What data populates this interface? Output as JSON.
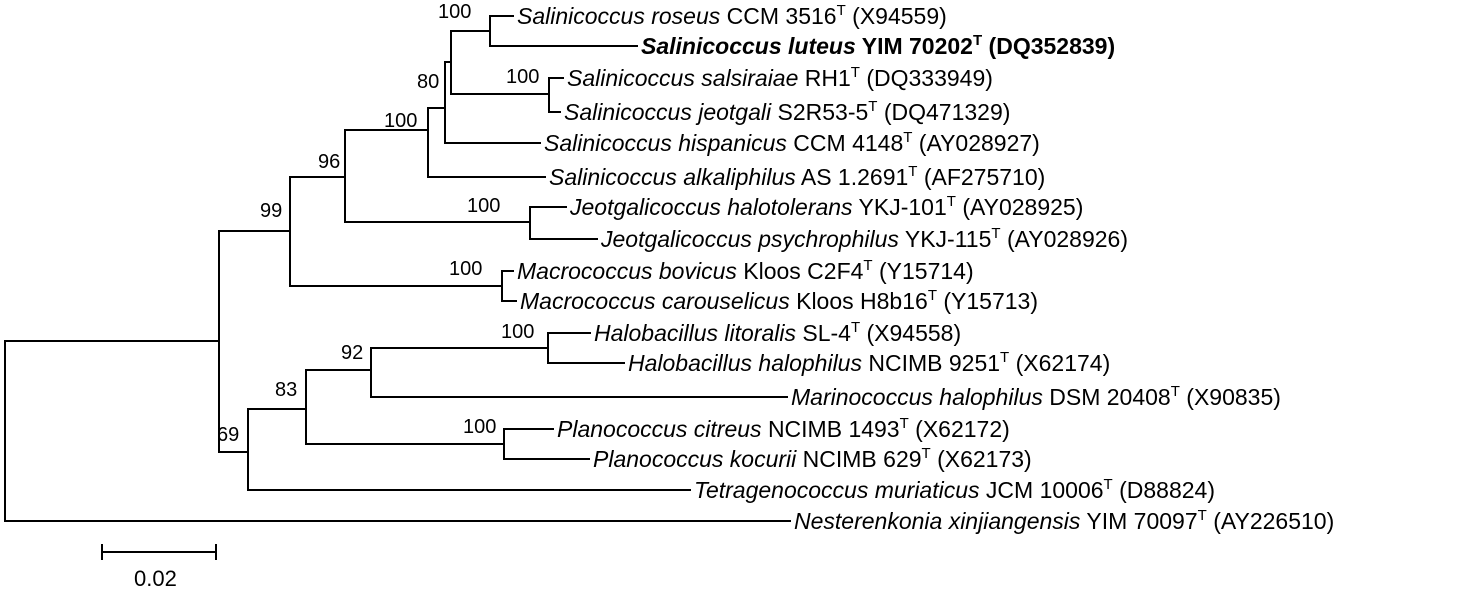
{
  "tree": {
    "taxa": [
      {
        "id": "roseus",
        "species": "Salinicoccus roseus",
        "strain": "CCM 3516",
        "superscript": "T",
        "accession": "(X94559)"
      },
      {
        "id": "luteus",
        "species": "Salinicoccus luteus",
        "strain": "YIM 70202",
        "superscript": "T",
        "accession": "(DQ352839)",
        "emphasis": "bold"
      },
      {
        "id": "salsiraiae",
        "species": "Salinicoccus salsiraiae",
        "strain": "RH1",
        "superscript": "T",
        "accession": "(DQ333949)"
      },
      {
        "id": "jeotgali",
        "species": "Salinicoccus jeotgali",
        "strain": "S2R53-5",
        "superscript": "T",
        "accession": "(DQ471329)"
      },
      {
        "id": "hispanicus",
        "species": "Salinicoccus hispanicus",
        "strain": "CCM 4148",
        "superscript": "T",
        "accession": "(AY028927)"
      },
      {
        "id": "alkaliphilus",
        "species": "Salinicoccus alkaliphilus",
        "strain": "AS 1.2691",
        "superscript": "T",
        "accession": "(AF275710)"
      },
      {
        "id": "halotolerans",
        "species": "Jeotgalicoccus halotolerans",
        "strain": "YKJ-101",
        "superscript": "T",
        "accession": "(AY028925)"
      },
      {
        "id": "psychrophilus",
        "species": "Jeotgalicoccus psychrophilus",
        "strain": "YKJ-115",
        "superscript": "T",
        "accession": "(AY028926)"
      },
      {
        "id": "bovicus",
        "species": "Macrococcus bovicus",
        "strain": "Kloos C2F4",
        "superscript": "T",
        "accession": "(Y15714)"
      },
      {
        "id": "carouselicus",
        "species": "Macrococcus carouselicus",
        "strain": "Kloos H8b16",
        "superscript": "T",
        "accession": "(Y15713)"
      },
      {
        "id": "litoralis",
        "species": "Halobacillus litoralis",
        "strain": "SL-4",
        "superscript": "T",
        "accession": "(X94558)"
      },
      {
        "id": "halophilusH",
        "species": "Halobacillus halophilus",
        "strain": "NCIMB 9251",
        "superscript": "T",
        "accession": "(X62174)"
      },
      {
        "id": "halophilusM",
        "species": "Marinococcus halophilus",
        "strain": "DSM 20408",
        "superscript": "T",
        "accession": "(X90835)"
      },
      {
        "id": "citreus",
        "species": "Planococcus citreus",
        "strain": "NCIMB 1493",
        "superscript": "T",
        "accession": "(X62172)"
      },
      {
        "id": "kocurii",
        "species": "Planococcus kocurii",
        "strain": "NCIMB 629",
        "superscript": "T",
        "accession": "(X62173)"
      },
      {
        "id": "muriaticus",
        "species": "Tetragenococcus muriaticus",
        "strain": "JCM 10006",
        "superscript": "T",
        "accession": "(D88824)"
      },
      {
        "id": "xinjiangensis",
        "species": "Nesterenkonia xinjiangensis",
        "strain": "YIM 70097",
        "superscript": "T",
        "accession": "(AY226510)"
      }
    ],
    "bootstrap": {
      "roseus_luteus": "100",
      "salsiraiae_jeotgali": "100",
      "salinicoccus_core": "80",
      "salinicoccus_all": "100",
      "salinicoccus_jeotgalicoccus": "96",
      "staphylococcaceae": "99",
      "jeotgalicoccus": "100",
      "macrococcus": "100",
      "halobacillus": "100",
      "halobacillus_marinococcus": "92",
      "planococcus_group": "83",
      "planococcus": "100",
      "bacillales_rest": "69"
    }
  },
  "scale_bar": {
    "label": "0.02"
  }
}
